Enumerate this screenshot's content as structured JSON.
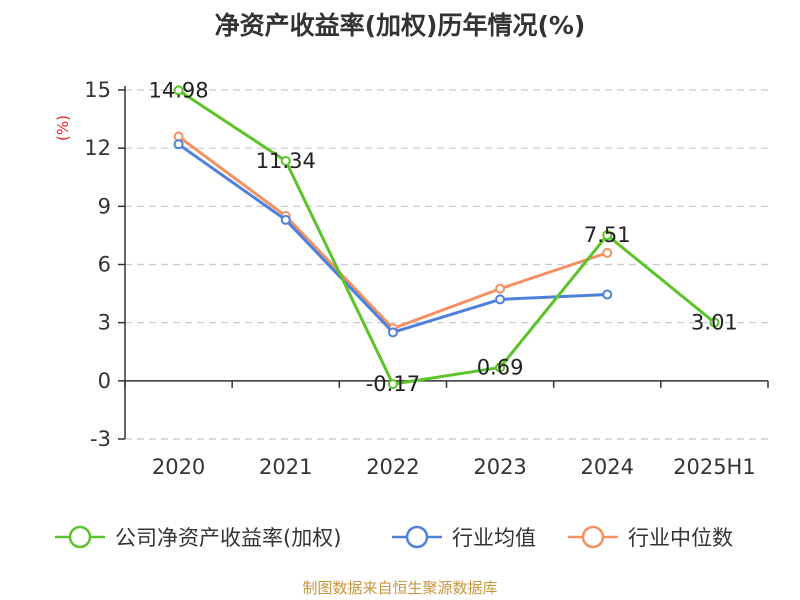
{
  "title": "净资产收益率(加权)历年情况(%)",
  "source": "制图数据来自恒生聚源数据库",
  "chart_data": {
    "type": "line",
    "title": "净资产收益率(加权)历年情况(%)",
    "ylabel": "(%)",
    "xlabel": "",
    "categories": [
      "2020",
      "2021",
      "2022",
      "2023",
      "2024",
      "2025H1"
    ],
    "ylim": [
      -3,
      15
    ],
    "yticks": [
      -3,
      0,
      3,
      6,
      9,
      12,
      15
    ],
    "grid": true,
    "legend_position": "bottom",
    "series": [
      {
        "name": "公司净资产收益率(加权)",
        "color": "#5cc42a",
        "values": [
          14.98,
          11.34,
          -0.17,
          0.69,
          7.51,
          3.01
        ],
        "labels": [
          "14.98",
          "11.34",
          "-0.17",
          "0.69",
          "7.51",
          "3.01"
        ]
      },
      {
        "name": "行业均值",
        "color": "#4f80dc",
        "values": [
          12.2,
          8.3,
          2.5,
          4.2,
          4.45,
          null
        ]
      },
      {
        "name": "行业中位数",
        "color": "#f59062",
        "values": [
          12.6,
          8.5,
          2.7,
          4.75,
          6.6,
          null
        ]
      }
    ]
  }
}
